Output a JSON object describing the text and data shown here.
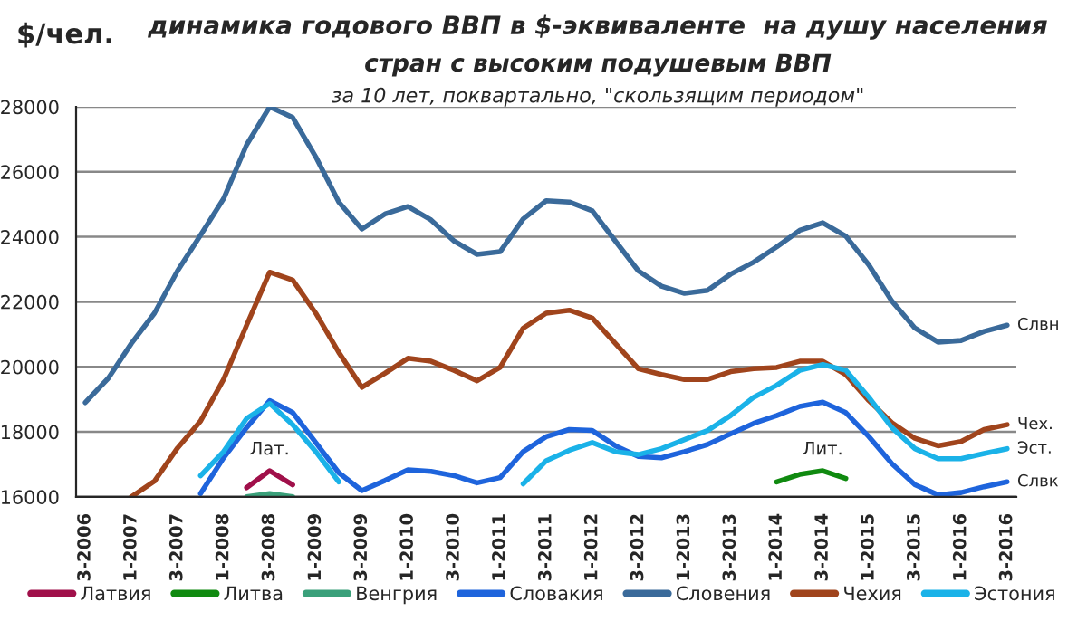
{
  "chart_data": {
    "type": "line",
    "title": "динамика годового ВВП в $-эквиваленте  на душу населения",
    "subtitle": "стран с высоким подушевым ВВП",
    "ylabel": "$/чел.",
    "categories": [
      "3-2006",
      null,
      "1-2007",
      null,
      "3-2007",
      null,
      "1-2008",
      null,
      "3-2008",
      null,
      "1-2009",
      null,
      "3-2009",
      null,
      "1-2010",
      null,
      "3-2010",
      null,
      "1-2011",
      null,
      "3-2011",
      null,
      "1-2012",
      null,
      "3-2012",
      null,
      "1-2013",
      null,
      "3-2013",
      null,
      "1-2014",
      null,
      "3-2014",
      null,
      "1-2015",
      null,
      "3-2015",
      null,
      "1-2016",
      null,
      "3-2016"
    ],
    "series": [
      {
        "name": "Латвия",
        "color": "#a0104a",
        "values": [
          null,
          null,
          null,
          null,
          null,
          null,
          null,
          16280,
          16800,
          16370,
          null,
          null,
          null,
          null,
          null,
          null,
          null,
          null,
          null,
          null,
          null,
          null,
          null,
          null,
          null,
          null,
          null,
          null,
          null,
          null,
          null,
          null,
          null,
          null,
          null,
          null,
          null,
          null,
          null,
          null,
          null
        ]
      },
      {
        "name": "Литва",
        "color": "#108a10",
        "values": [
          null,
          null,
          null,
          null,
          null,
          null,
          null,
          null,
          null,
          null,
          null,
          null,
          null,
          null,
          null,
          null,
          null,
          null,
          null,
          null,
          null,
          null,
          null,
          null,
          null,
          null,
          null,
          null,
          null,
          null,
          16460,
          16690,
          16800,
          16560,
          null,
          null,
          null,
          null,
          null,
          null,
          null
        ]
      },
      {
        "name": "Венгрия",
        "color": "#3aa07a",
        "values": [
          null,
          null,
          null,
          null,
          null,
          null,
          null,
          16000,
          16100,
          16000,
          null,
          null,
          null,
          null,
          null,
          null,
          null,
          null,
          null,
          null,
          null,
          null,
          null,
          null,
          null,
          null,
          null,
          null,
          null,
          null,
          null,
          null,
          null,
          null,
          null,
          null,
          null,
          null,
          null,
          null,
          null
        ]
      },
      {
        "name": "Словакия",
        "color": "#1e64dc",
        "values": [
          null,
          null,
          null,
          null,
          null,
          16100,
          17200,
          18130,
          18960,
          18590,
          17670,
          16740,
          16190,
          16500,
          16830,
          16780,
          16650,
          16430,
          16590,
          17390,
          17850,
          18070,
          18040,
          17570,
          17240,
          17200,
          17390,
          17610,
          17940,
          18260,
          18500,
          18780,
          18910,
          18590,
          17850,
          17020,
          16370,
          16060,
          16130,
          16310,
          16460
        ]
      },
      {
        "name": "Словения",
        "color": "#3a6a9a",
        "values": [
          18900,
          19650,
          20720,
          21650,
          22950,
          24050,
          25170,
          26830,
          28000,
          27670,
          26460,
          25070,
          24240,
          24700,
          24930,
          24520,
          23870,
          23460,
          23540,
          24550,
          25110,
          25070,
          24800,
          23870,
          22950,
          22480,
          22260,
          22350,
          22850,
          23220,
          23690,
          24200,
          24430,
          24020,
          23130,
          22020,
          21190,
          20760,
          20810,
          21090,
          21280
        ]
      },
      {
        "name": "Чехия",
        "color": "#a0441c",
        "values": [
          null,
          null,
          16000,
          16480,
          17500,
          18330,
          19610,
          21280,
          22910,
          22670,
          21650,
          20440,
          19370,
          19800,
          20260,
          20170,
          19890,
          19570,
          19980,
          21190,
          21650,
          21740,
          21500,
          20720,
          19940,
          19760,
          19610,
          19610,
          19850,
          19940,
          19980,
          20170,
          20170,
          19760,
          18960,
          18280,
          17800,
          17570,
          17700,
          18070,
          18220
        ]
      },
      {
        "name": "Эстония",
        "color": "#1ab2e8",
        "values": [
          null,
          null,
          null,
          null,
          null,
          16650,
          17390,
          18410,
          18870,
          18220,
          17390,
          16460,
          null,
          null,
          null,
          null,
          null,
          null,
          null,
          16400,
          17110,
          17430,
          17670,
          17390,
          17300,
          17480,
          17760,
          18040,
          18500,
          19060,
          19430,
          19890,
          20070,
          19890,
          19060,
          18130,
          17480,
          17170,
          17170,
          17330,
          17480
        ]
      }
    ],
    "ylim": [
      16000,
      28000
    ],
    "yticks": [
      16000,
      18000,
      20000,
      22000,
      24000,
      26000,
      28000
    ],
    "grid": "y",
    "legend": "bottom",
    "annotations": [
      "за 10 лет, поквартально, \"скользящим периодом\"",
      {
        "text": "Лат.",
        "x": "3-2008",
        "y": 16800
      },
      {
        "text": "Лит.",
        "x": "3-2014",
        "y": 16800
      },
      {
        "text": "Слвн",
        "x": "3-2016",
        "y": 21280
      },
      {
        "text": "Чех.",
        "x": "3-2016",
        "y": 18220
      },
      {
        "text": "Эст.",
        "x": "3-2016",
        "y": 17480
      },
      {
        "text": "Слвк",
        "x": "3-2016",
        "y": 16460
      }
    ]
  }
}
